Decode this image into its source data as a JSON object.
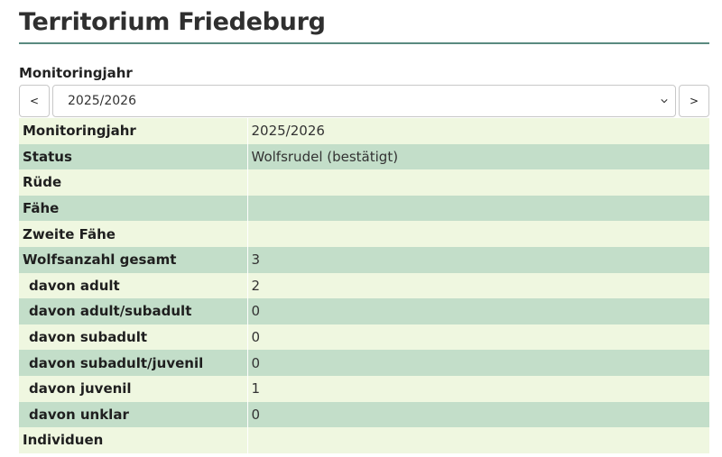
{
  "page": {
    "title": "Territorium Friedeburg"
  },
  "year_selector": {
    "label": "Monitoringjahr",
    "prev_label": "<",
    "next_label": ">",
    "selected": "2025/2026"
  },
  "table": {
    "rows": [
      {
        "key": "Monitoringjahr",
        "value": "2025/2026"
      },
      {
        "key": "Status",
        "value": "Wolfsrudel (bestätigt)"
      },
      {
        "key": "Rüde",
        "value": ""
      },
      {
        "key": "Fähe",
        "value": ""
      },
      {
        "key": "Zweite Fähe",
        "value": ""
      },
      {
        "key": "Wolfsanzahl gesamt",
        "value": "3"
      },
      {
        "key": "davon adult",
        "value": "2"
      },
      {
        "key": "davon adult/subadult",
        "value": "0"
      },
      {
        "key": "davon subadult",
        "value": "0"
      },
      {
        "key": "davon subadult/juvenil",
        "value": "0"
      },
      {
        "key": "davon juvenil",
        "value": "1"
      },
      {
        "key": "davon unklar",
        "value": "0"
      },
      {
        "key": "Individuen",
        "value": ""
      }
    ]
  },
  "colors": {
    "row_light": "#eff7e0",
    "row_dark": "#c3dec9",
    "rule": "#5a8a80"
  }
}
